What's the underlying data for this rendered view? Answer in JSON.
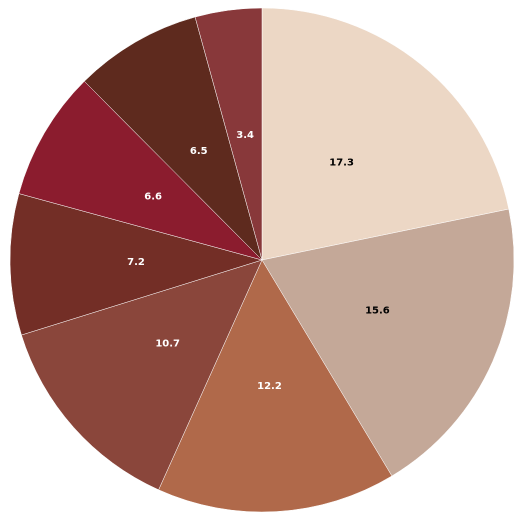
{
  "chart_data": {
    "type": "pie",
    "values": [
      17.3,
      15.6,
      12.2,
      10.7,
      7.2,
      6.6,
      6.5,
      3.4
    ],
    "colors": [
      "#ecd7c5",
      "#c4a898",
      "#b0694a",
      "#8a463b",
      "#732e26",
      "#8b1c2e",
      "#5e2a1e",
      "#88383a"
    ]
  }
}
